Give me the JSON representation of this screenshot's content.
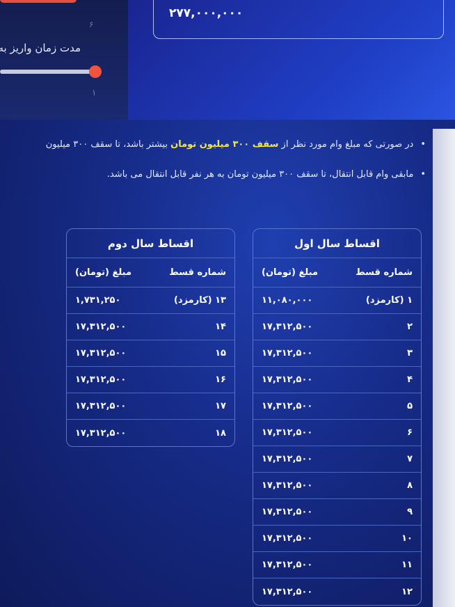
{
  "loan_amount": "۲۷۷,۰۰۰,۰۰۰",
  "duration": {
    "label": "مدت زمان واریز به ح",
    "tick_max": "۶",
    "tick_min": "۱",
    "slider_fraction": 0.0
  },
  "notes": {
    "n1_before": "در صورتی که مبلغ وام مورد نظر از ",
    "n1_highlight": "سقف ۳۰۰ میلیون تومان",
    "n1_after": " بیشتر باشد، تا سقف ۳۰۰ میلیون",
    "n2": "مابقی وام قابل انتقال، تا سقف ۳۰۰ میلیون تومان به هر نفر قابل انتقال می باشد."
  },
  "colors": {
    "highlight": "#f4e640",
    "slider": "#f0543c"
  },
  "year1": {
    "title": "اقساط سال اول",
    "col_number": "شماره قسط",
    "col_amount": "مبلغ (تومان)",
    "rows": [
      [
        "۱ (کارمزد)",
        "۱۱,۰۸۰,۰۰۰"
      ],
      [
        "۲",
        "۱۷,۳۱۲,۵۰۰"
      ],
      [
        "۳",
        "۱۷,۳۱۲,۵۰۰"
      ],
      [
        "۴",
        "۱۷,۳۱۲,۵۰۰"
      ],
      [
        "۵",
        "۱۷,۳۱۲,۵۰۰"
      ],
      [
        "۶",
        "۱۷,۳۱۲,۵۰۰"
      ],
      [
        "۷",
        "۱۷,۳۱۲,۵۰۰"
      ],
      [
        "۸",
        "۱۷,۳۱۲,۵۰۰"
      ],
      [
        "۹",
        "۱۷,۳۱۲,۵۰۰"
      ],
      [
        "۱۰",
        "۱۷,۳۱۲,۵۰۰"
      ],
      [
        "۱۱",
        "۱۷,۳۱۲,۵۰۰"
      ],
      [
        "۱۲",
        "۱۷,۳۱۲,۵۰۰"
      ]
    ]
  },
  "year2": {
    "title": "اقساط سال دوم",
    "col_number": "شماره قسط",
    "col_amount": "مبلغ (تومان)",
    "rows": [
      [
        "۱۳ (کارمزد)",
        "۱,۷۳۱,۲۵۰"
      ],
      [
        "۱۴",
        "۱۷,۳۱۲,۵۰۰"
      ],
      [
        "۱۵",
        "۱۷,۳۱۲,۵۰۰"
      ],
      [
        "۱۶",
        "۱۷,۳۱۲,۵۰۰"
      ],
      [
        "۱۷",
        "۱۷,۳۱۲,۵۰۰"
      ],
      [
        "۱۸",
        "۱۷,۳۱۲,۵۰۰"
      ]
    ]
  }
}
